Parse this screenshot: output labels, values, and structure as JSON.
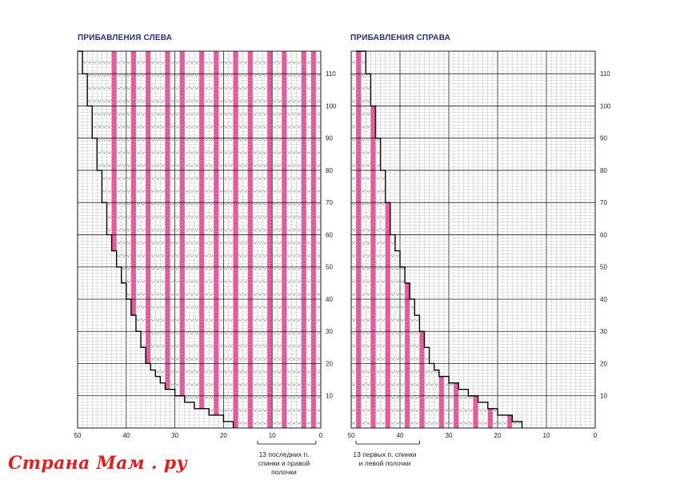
{
  "chart_data": [
    {
      "type": "diagram",
      "title": "ПРИБАВЛЕНИЯ СЛЕВА",
      "side": "left",
      "columns": 50,
      "rows": 117,
      "x_ticks": [
        50,
        40,
        30,
        20,
        10,
        0
      ],
      "y_ticks": [
        10,
        20,
        30,
        40,
        50,
        60,
        70,
        80,
        90,
        100,
        110
      ],
      "note": "13 последних п.\nспинки и правой\nполочки",
      "pink_columns": [
        1,
        3,
        7,
        10,
        14,
        17,
        21,
        24,
        28,
        31,
        35,
        38,
        42
      ],
      "boundary": [
        [
          0,
          18
        ],
        [
          2,
          20
        ],
        [
          4,
          23
        ],
        [
          6,
          26
        ],
        [
          8,
          28
        ],
        [
          10,
          30
        ],
        [
          12,
          32
        ],
        [
          14,
          33
        ],
        [
          16,
          34
        ],
        [
          18,
          35
        ],
        [
          20,
          36
        ],
        [
          25,
          37
        ],
        [
          30,
          38
        ],
        [
          35,
          39
        ],
        [
          40,
          40
        ],
        [
          45,
          41
        ],
        [
          50,
          42
        ],
        [
          55,
          43
        ],
        [
          60,
          44
        ],
        [
          70,
          45
        ],
        [
          80,
          46
        ],
        [
          90,
          47
        ],
        [
          100,
          48
        ],
        [
          110,
          49
        ],
        [
          117,
          50
        ]
      ]
    },
    {
      "type": "diagram",
      "title": "ПРИБАВЛЕНИЯ СПРАВА",
      "side": "right",
      "columns": 50,
      "rows": 117,
      "x_ticks": [
        50,
        40,
        30,
        20,
        10,
        0
      ],
      "y_ticks": [
        10,
        20,
        30,
        40,
        50,
        60,
        70,
        80,
        90,
        100,
        110
      ],
      "note": "13 первых п. спинки\nи левой полочки",
      "pink_columns": [
        1,
        3,
        7,
        10,
        14,
        17,
        21,
        24,
        28,
        31,
        35,
        38,
        42,
        45,
        48
      ],
      "boundary": [
        [
          0,
          35
        ],
        [
          2,
          33
        ],
        [
          4,
          30
        ],
        [
          6,
          28
        ],
        [
          8,
          26
        ],
        [
          10,
          24
        ],
        [
          12,
          22
        ],
        [
          14,
          20
        ],
        [
          16,
          18
        ],
        [
          18,
          17
        ],
        [
          20,
          16
        ],
        [
          25,
          15
        ],
        [
          30,
          14
        ],
        [
          35,
          13
        ],
        [
          40,
          12
        ],
        [
          45,
          11
        ],
        [
          50,
          10
        ],
        [
          55,
          9
        ],
        [
          60,
          8
        ],
        [
          70,
          7
        ],
        [
          80,
          6
        ],
        [
          90,
          5
        ],
        [
          100,
          4
        ],
        [
          110,
          3
        ],
        [
          117,
          1
        ]
      ]
    }
  ],
  "colors": {
    "grid": "#a8a8a8",
    "grid_major": "#222222",
    "pink": "#e8559a",
    "title": "#2a2f7a",
    "watermark": "#e02020"
  },
  "watermark": "Страна Мам . ру"
}
